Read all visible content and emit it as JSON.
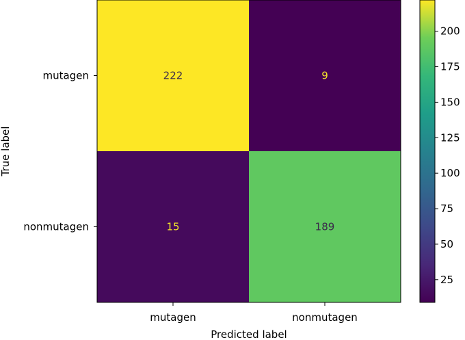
{
  "chart_data": {
    "type": "heatmap",
    "title": "",
    "xlabel": "Predicted label",
    "ylabel": "True label",
    "x_categories": [
      "mutagen",
      "nonmutagen"
    ],
    "y_categories": [
      "mutagen",
      "nonmutagen"
    ],
    "matrix": [
      [
        222,
        9
      ],
      [
        15,
        189
      ]
    ],
    "colormap": "viridis",
    "colorbar": {
      "min": 9,
      "max": 222,
      "ticks": [
        25,
        50,
        75,
        100,
        125,
        150,
        175,
        200
      ]
    },
    "grid": false
  }
}
